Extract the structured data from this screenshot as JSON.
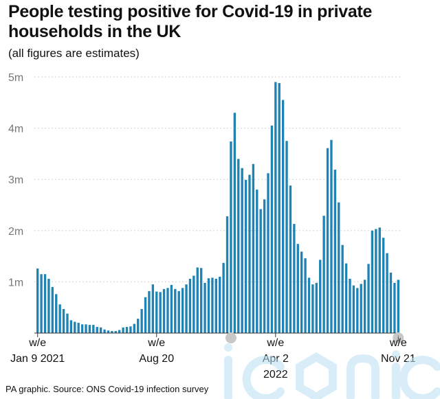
{
  "title": "People testing positive for Covid-19 in private households in the UK",
  "subtitle": "(all figures are estimates)",
  "source": "PA graphic. Source: ONS Covid-19 infection survey",
  "watermark": "iconic",
  "colors": {
    "bar": "#1f83b4",
    "grid": "#d0d0d0",
    "axis": "#333333",
    "marker": "#c8c8c8"
  },
  "chart_data": {
    "type": "bar",
    "title": "People testing positive for Covid-19 in private households in the UK",
    "subtitle": "(all figures are estimates)",
    "ylim": [
      0,
      5000000
    ],
    "yticks": [
      {
        "value": 1000000,
        "label": "1m"
      },
      {
        "value": 2000000,
        "label": "2m"
      },
      {
        "value": 3000000,
        "label": "3m"
      },
      {
        "value": 4000000,
        "label": "4m"
      },
      {
        "value": 5000000,
        "label": "5m"
      }
    ],
    "grid": true,
    "xlabels": [
      {
        "index": 0,
        "line1": "w/e",
        "line2": "Jan 9 2021",
        "line3": ""
      },
      {
        "index": 32,
        "line1": "w/e",
        "line2": "Aug 20",
        "line3": ""
      },
      {
        "index": 64,
        "line1": "w/e",
        "line2": "Apr 2",
        "line3": "2022"
      },
      {
        "index": 97,
        "line1": "w/e",
        "line2": "Nov 21",
        "line3": ""
      }
    ],
    "marked_bars": [
      {
        "index": 52,
        "label": ""
      },
      {
        "index": 97,
        "label": "i"
      }
    ],
    "values": [
      1260000,
      1150000,
      1150000,
      1060000,
      900000,
      760000,
      560000,
      470000,
      380000,
      250000,
      220000,
      200000,
      170000,
      170000,
      160000,
      160000,
      120000,
      110000,
      70000,
      50000,
      40000,
      40000,
      60000,
      110000,
      120000,
      130000,
      180000,
      280000,
      470000,
      700000,
      820000,
      950000,
      810000,
      800000,
      860000,
      880000,
      940000,
      860000,
      820000,
      880000,
      950000,
      1060000,
      1120000,
      1280000,
      1270000,
      980000,
      1070000,
      1080000,
      1060000,
      1100000,
      1370000,
      2280000,
      3740000,
      4300000,
      3400000,
      3220000,
      2990000,
      3090000,
      3300000,
      2800000,
      2420000,
      2610000,
      3120000,
      4050000,
      4900000,
      4880000,
      4550000,
      3750000,
      2880000,
      2130000,
      1740000,
      1590000,
      1460000,
      1080000,
      950000,
      980000,
      1430000,
      2290000,
      3610000,
      3770000,
      3190000,
      2550000,
      1720000,
      1360000,
      1060000,
      930000,
      880000,
      960000,
      1040000,
      1350000,
      2000000,
      2030000,
      2060000,
      1860000,
      1560000,
      1180000,
      980000,
      1040000
    ]
  }
}
